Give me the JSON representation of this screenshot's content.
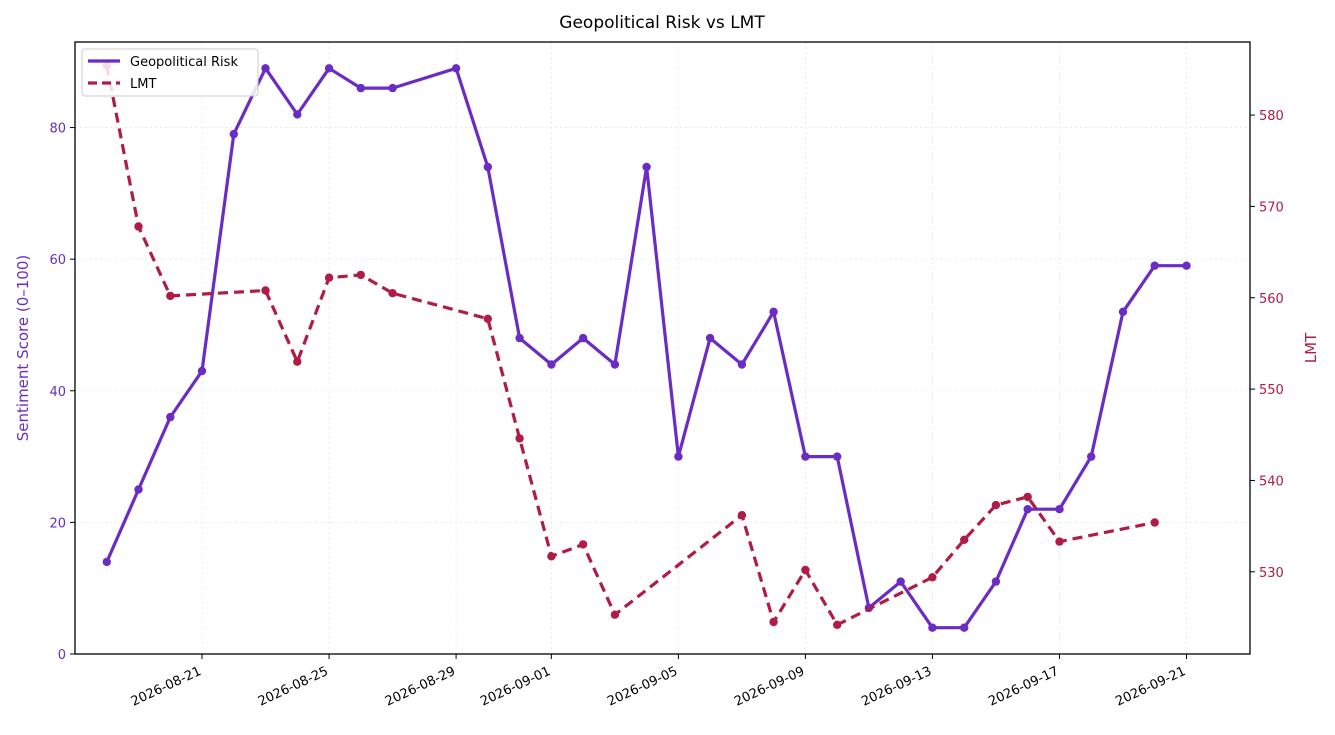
{
  "chart_data": {
    "type": "line",
    "title": "Geopolitical Risk vs LMT",
    "ylabel_left": "Sentiment Score (0–100)",
    "ylabel_right": "LMT",
    "xlabel": "",
    "ylim_left": [
      0,
      93
    ],
    "ylim_right": [
      521,
      588
    ],
    "xlim": [
      "2026-08-17",
      "2026-09-23"
    ],
    "left_ticks": [
      0,
      20,
      40,
      60,
      80
    ],
    "right_ticks": [
      530,
      540,
      550,
      560,
      570,
      580
    ],
    "x_ticks": [
      "2026-08-21",
      "2026-08-25",
      "2026-08-29",
      "2026-09-01",
      "2026-09-05",
      "2026-09-09",
      "2026-09-13",
      "2026-09-17",
      "2026-09-21"
    ],
    "grid": true,
    "legend_position": "upper-left",
    "colors": {
      "risk": "#6a2cc4",
      "lmt": "#b01c45"
    },
    "series": [
      {
        "name": "Geopolitical Risk",
        "axis": "left",
        "style": "solid",
        "points": [
          [
            "2026-08-18",
            14
          ],
          [
            "2026-08-19",
            25
          ],
          [
            "2026-08-20",
            36
          ],
          [
            "2026-08-21",
            43
          ],
          [
            "2026-08-22",
            79
          ],
          [
            "2026-08-23",
            89
          ],
          [
            "2026-08-24",
            82
          ],
          [
            "2026-08-25",
            89
          ],
          [
            "2026-08-26",
            86
          ],
          [
            "2026-08-27",
            86
          ],
          [
            "2026-08-29",
            89
          ],
          [
            "2026-08-30",
            74
          ],
          [
            "2026-08-31",
            48
          ],
          [
            "2026-09-01",
            44
          ],
          [
            "2026-09-02",
            48
          ],
          [
            "2026-09-03",
            44
          ],
          [
            "2026-09-04",
            74
          ],
          [
            "2026-09-05",
            30
          ],
          [
            "2026-09-06",
            48
          ],
          [
            "2026-09-07",
            44
          ],
          [
            "2026-09-08",
            52
          ],
          [
            "2026-09-09",
            30
          ],
          [
            "2026-09-10",
            30
          ],
          [
            "2026-09-11",
            7
          ],
          [
            "2026-09-12",
            11
          ],
          [
            "2026-09-13",
            4
          ],
          [
            "2026-09-14",
            4
          ],
          [
            "2026-09-15",
            11
          ],
          [
            "2026-09-16",
            22
          ],
          [
            "2026-09-17",
            22
          ],
          [
            "2026-09-18",
            30
          ],
          [
            "2026-09-19",
            52
          ],
          [
            "2026-09-20",
            59
          ],
          [
            "2026-09-21",
            59
          ]
        ]
      },
      {
        "name": "LMT",
        "axis": "right",
        "style": "dashed",
        "points": [
          [
            "2026-08-18",
            585.4
          ],
          [
            "2026-08-19",
            567.8
          ],
          [
            "2026-08-20",
            560.2
          ],
          [
            "2026-08-23",
            560.8
          ],
          [
            "2026-08-24",
            553.0
          ],
          [
            "2026-08-25",
            562.2
          ],
          [
            "2026-08-26",
            562.5
          ],
          [
            "2026-08-27",
            560.5
          ],
          [
            "2026-08-30",
            557.7
          ],
          [
            "2026-08-31",
            544.6
          ],
          [
            "2026-09-01",
            531.7
          ],
          [
            "2026-09-02",
            533.0
          ],
          [
            "2026-09-03",
            525.3
          ],
          [
            "2026-09-07",
            536.2
          ],
          [
            "2026-09-08",
            524.5
          ],
          [
            "2026-09-09",
            530.2
          ],
          [
            "2026-09-10",
            524.2
          ],
          [
            "2026-09-13",
            529.4
          ],
          [
            "2026-09-14",
            533.5
          ],
          [
            "2026-09-15",
            537.3
          ],
          [
            "2026-09-16",
            538.2
          ],
          [
            "2026-09-17",
            533.3
          ],
          [
            "2026-09-20",
            535.4
          ]
        ]
      }
    ]
  }
}
